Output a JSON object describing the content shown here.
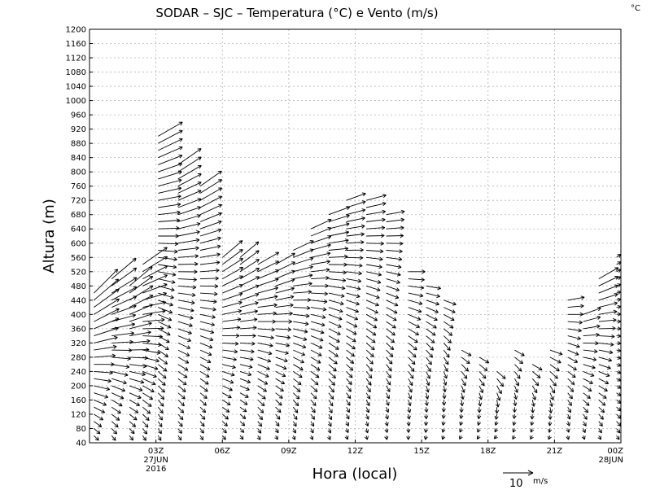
{
  "chart_data": {
    "type": "wind-barbs",
    "title": "SODAR – SJC – Temperatura (°C) e Vento (m/s)",
    "temperature_unit": "°C",
    "xlabel": "Hora (local)",
    "ylabel": "Altura (m)",
    "ylim": [
      40,
      1200
    ],
    "y_ticks": [
      40,
      80,
      120,
      160,
      200,
      240,
      280,
      320,
      360,
      400,
      440,
      480,
      520,
      560,
      600,
      640,
      680,
      720,
      760,
      800,
      840,
      880,
      920,
      960,
      1000,
      1040,
      1080,
      1120,
      1160,
      1200
    ],
    "x_range_hours": [
      0,
      24
    ],
    "x_ticks": [
      {
        "hour": 3,
        "label": "03Z",
        "sub1": "27JUN",
        "sub2": "2016"
      },
      {
        "hour": 6,
        "label": "06Z",
        "sub1": "",
        "sub2": ""
      },
      {
        "hour": 9,
        "label": "09Z",
        "sub1": "",
        "sub2": ""
      },
      {
        "hour": 12,
        "label": "12Z",
        "sub1": "",
        "sub2": ""
      },
      {
        "hour": 15,
        "label": "15Z",
        "sub1": "",
        "sub2": ""
      },
      {
        "hour": 18,
        "label": "18Z",
        "sub1": "",
        "sub2": ""
      },
      {
        "hour": 21,
        "label": "21Z",
        "sub1": "",
        "sub2": ""
      },
      {
        "hour": 24,
        "label": "00Z",
        "sub1": "28JUN",
        "sub2": ""
      }
    ],
    "grid": true,
    "legend": {
      "reference_speed": 10,
      "number": "10",
      "unit": "m/s",
      "placement": "bottom-right"
    },
    "profiles": [
      {
        "hour": 0.2,
        "top": 460,
        "dir": 225,
        "speed": 18
      },
      {
        "hour": 1.0,
        "top": 500,
        "dir": 230,
        "speed": 17
      },
      {
        "hour": 1.8,
        "top": 480,
        "dir": 230,
        "speed": 16
      },
      {
        "hour": 2.4,
        "top": 540,
        "dir": 235,
        "speed": 16
      },
      {
        "hour": 3.1,
        "top": 900,
        "dir": 240,
        "speed": 15
      },
      {
        "hour": 4.0,
        "top": 820,
        "dir": 235,
        "speed": 15
      },
      {
        "hour": 5.0,
        "top": 760,
        "dir": 235,
        "speed": 14
      },
      {
        "hour": 6.0,
        "top": 560,
        "dir": 230,
        "speed": 14
      },
      {
        "hour": 6.8,
        "top": 560,
        "dir": 230,
        "speed": 13
      },
      {
        "hour": 7.6,
        "top": 540,
        "dir": 240,
        "speed": 13
      },
      {
        "hour": 8.4,
        "top": 540,
        "dir": 240,
        "speed": 12
      },
      {
        "hour": 9.2,
        "top": 580,
        "dir": 245,
        "speed": 12
      },
      {
        "hour": 10.0,
        "top": 640,
        "dir": 245,
        "speed": 12
      },
      {
        "hour": 10.8,
        "top": 680,
        "dir": 250,
        "speed": 12
      },
      {
        "hour": 11.6,
        "top": 720,
        "dir": 250,
        "speed": 11
      },
      {
        "hour": 12.5,
        "top": 720,
        "dir": 255,
        "speed": 11
      },
      {
        "hour": 13.4,
        "top": 680,
        "dir": 260,
        "speed": 10
      },
      {
        "hour": 14.4,
        "top": 520,
        "dir": 270,
        "speed": 9
      },
      {
        "hour": 15.2,
        "top": 480,
        "dir": 280,
        "speed": 8
      },
      {
        "hour": 16.0,
        "top": 440,
        "dir": 290,
        "speed": 7
      },
      {
        "hour": 16.8,
        "top": 300,
        "dir": 300,
        "speed": 6
      },
      {
        "hour": 17.6,
        "top": 280,
        "dir": 300,
        "speed": 6
      },
      {
        "hour": 18.4,
        "top": 240,
        "dir": 310,
        "speed": 6
      },
      {
        "hour": 19.2,
        "top": 300,
        "dir": 300,
        "speed": 6
      },
      {
        "hour": 20.0,
        "top": 260,
        "dir": 300,
        "speed": 6
      },
      {
        "hour": 20.8,
        "top": 300,
        "dir": 290,
        "speed": 7
      },
      {
        "hour": 21.6,
        "top": 440,
        "dir": 260,
        "speed": 9
      },
      {
        "hour": 22.3,
        "top": 400,
        "dir": 250,
        "speed": 10
      },
      {
        "hour": 23.0,
        "top": 500,
        "dir": 240,
        "speed": 12
      },
      {
        "hour": 23.8,
        "top": 560,
        "dir": 235,
        "speed": 13
      }
    ]
  }
}
